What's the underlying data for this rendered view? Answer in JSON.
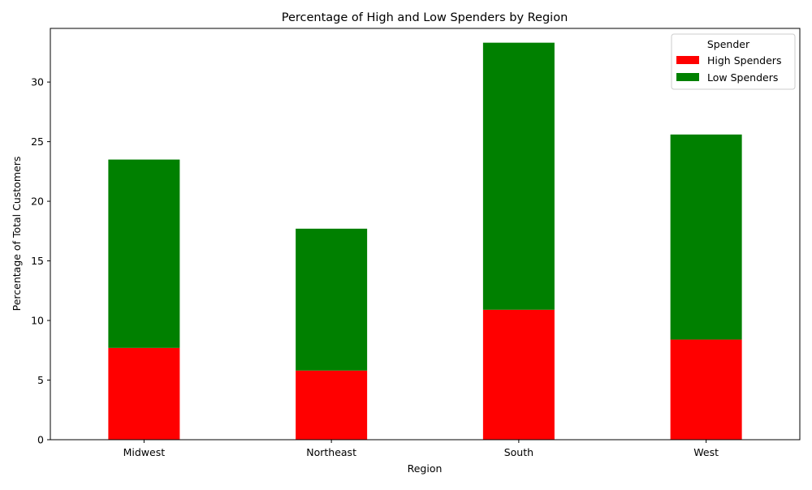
{
  "chart_data": {
    "type": "bar",
    "stacked": true,
    "title": "Percentage of High and Low Spenders by Region",
    "xlabel": "Region",
    "ylabel": "Percentage of Total Customers",
    "categories": [
      "Midwest",
      "Northeast",
      "South",
      "West"
    ],
    "series": [
      {
        "name": "High Spenders",
        "color": "#ff0000",
        "values": [
          7.7,
          5.8,
          10.9,
          8.4
        ]
      },
      {
        "name": "Low Spenders",
        "color": "#008000",
        "values": [
          15.8,
          11.9,
          22.4,
          17.2
        ]
      }
    ],
    "ylim": [
      0,
      34.5
    ],
    "yticks": [
      0,
      5,
      10,
      15,
      20,
      25,
      30
    ],
    "grid": false,
    "legend": {
      "title": "Spender",
      "placement": "top-right"
    }
  }
}
